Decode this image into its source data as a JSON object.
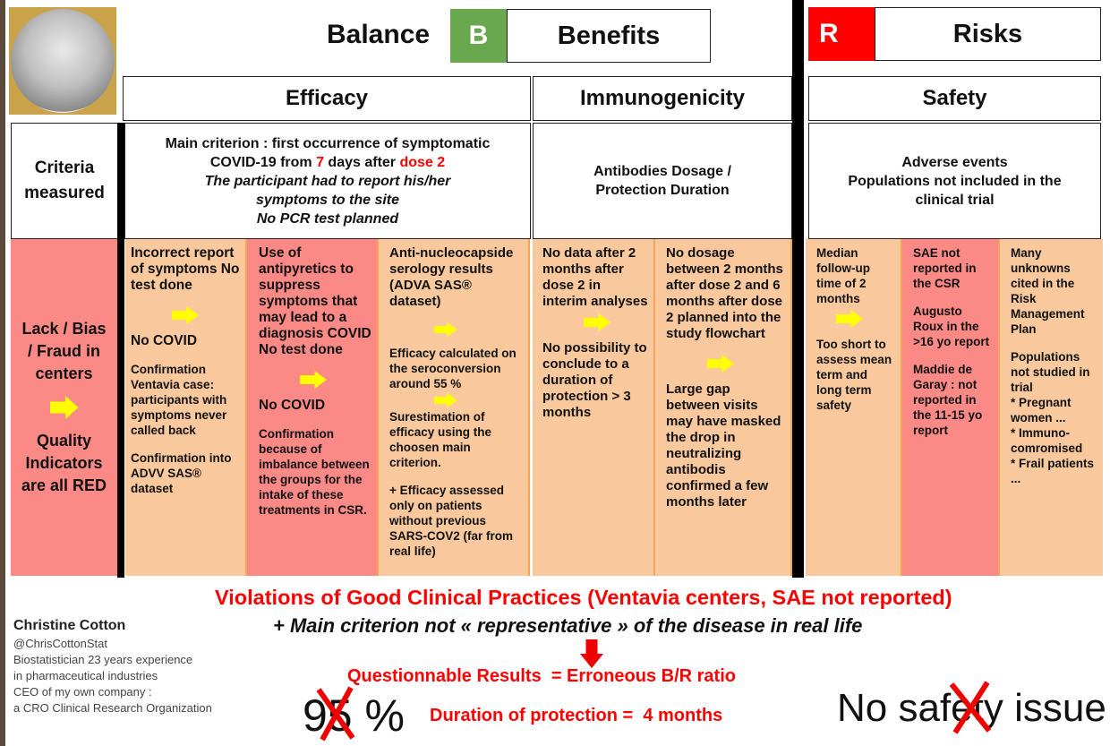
{
  "header": {
    "balance": "Balance",
    "b_letter": "B",
    "benefits": "Benefits",
    "r_letter": "R",
    "risks": "Risks"
  },
  "colors": {
    "green": "#6aa84f",
    "red": "#ff0000",
    "orange": "#f9c89c",
    "pink": "#fb8a87"
  },
  "columns": {
    "efficacy": "Efficacy",
    "immunogenicity": "Immunogenicity",
    "safety": "Safety"
  },
  "criteria": {
    "label": "Criteria measured",
    "efficacy": {
      "l1": "Main criterion : first occurrence of symptomatic",
      "l2a": "COVID-19 from ",
      "l2b": "7",
      "l2c": " days after ",
      "l2d": "dose 2",
      "l3": "The participant had to report his/her symptoms to the site",
      "l4": "No PCR test planned"
    },
    "immunogenicity": "Antibodies Dosage / Protection Duration",
    "safety": {
      "l1": "Adverse events",
      "l2": "Populations not included in the clinical trial"
    }
  },
  "left_cell": {
    "top": "Lack / Bias / Fraud in centers",
    "bottom": "Quality Indicators are all RED"
  },
  "cells": {
    "c1": [
      "Incorrect report of symptoms No test done",
      "No COVID",
      "Confirmation Ventavia case: participants with symptoms never called back",
      "Confirmation into ADVV SAS® dataset"
    ],
    "c2": [
      "Use of antipyretics to suppress symptoms that may lead to a diagnosis COVID No test done",
      "No COVID",
      "Confirmation because of imbalance between the groups for the intake of these treatments in CSR."
    ],
    "c3": [
      "Anti-nucleocapside serology results (ADVA SAS® dataset)",
      "Efficacy calculated on the seroconversion around 55 %",
      "Surestimation of efficacy using the choosen main criterion.",
      "+ Efficacy assessed only on patients without previous SARS-COV2 (far from real life)"
    ],
    "c4": [
      "No data after 2 months after dose 2 in interim analyses",
      "No possibility to conclude to a duration of protection > 3 months"
    ],
    "c5": [
      "No dosage between 2 months after dose 2 and 6 months after dose 2 planned into the study flowchart",
      "Large gap between visits may have masked the drop in neutralizing antibodis confirmed a few months later"
    ],
    "c6": [
      "Median follow-up time of 2 months",
      "Too short to assess mean term and long term safety"
    ],
    "c7": [
      "SAE not reported in the CSR",
      "Augusto Roux in the >16 yo report",
      "Maddie de Garay : not reported in the 11-15 yo report"
    ],
    "c8": [
      "Many unknowns cited in the Risk Management Plan",
      "Populations not studied in trial",
      "* Pregnant women ...",
      "* Immuno-comromised",
      "* Frail patients",
      "..."
    ]
  },
  "conclusion": {
    "violations": "Violations of Good Clinical Practices (Ventavia centers, SAE not reported)",
    "main_criterion": "+ Main criterion not « representative » of the disease in real life",
    "questionnable": "Questionnable Results  = Erroneous B/R ratio",
    "percent": "95 %",
    "duration": "Duration of protection =  4 months",
    "no_safety": "No safety issue"
  },
  "author": {
    "name": "Christine Cotton",
    "handle": "@ChrisCottonStat",
    "bio": [
      "Biostatistician 23 years experience",
      "in pharmaceutical industries",
      "CEO of my own company :",
      "a CRO Clinical Research Organization"
    ]
  }
}
